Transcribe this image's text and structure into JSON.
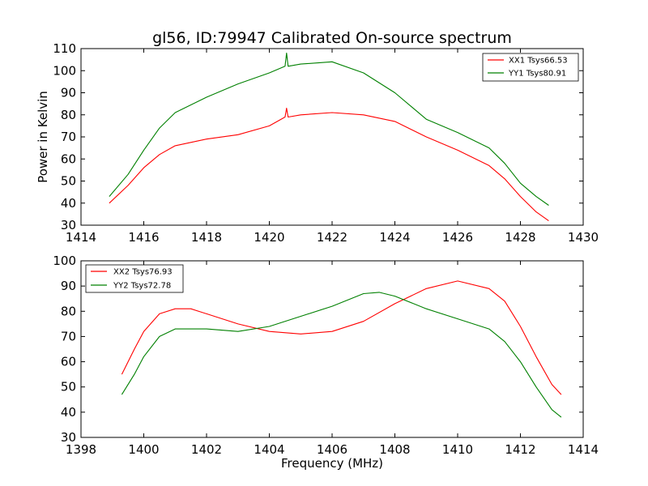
{
  "chart_data": [
    {
      "type": "line",
      "title": "gl56, ID:79947 Calibrated On-source spectrum",
      "xlabel": "",
      "ylabel": "Power in Kelvin",
      "xlim": [
        1414,
        1430
      ],
      "ylim": [
        30,
        110
      ],
      "xticks": [
        "1414",
        "1416",
        "1418",
        "1420",
        "1422",
        "1424",
        "1426",
        "1428",
        "1430"
      ],
      "yticks": [
        "30",
        "40",
        "50",
        "60",
        "70",
        "80",
        "90",
        "100",
        "110"
      ],
      "grid": false,
      "legend_position": "top-right",
      "series": [
        {
          "name": "XX1 Tsys66.53",
          "color": "#ff0000",
          "points": [
            [
              1414.9,
              40.0
            ],
            [
              1415.5,
              48.0
            ],
            [
              1416.0,
              56.0
            ],
            [
              1416.5,
              62.0
            ],
            [
              1417.0,
              66.0
            ],
            [
              1418.0,
              69.0
            ],
            [
              1419.0,
              71.0
            ],
            [
              1420.0,
              75.0
            ],
            [
              1420.5,
              79.0
            ],
            [
              1420.55,
              83.0
            ],
            [
              1420.6,
              79.0
            ],
            [
              1421.0,
              80.0
            ],
            [
              1422.0,
              81.0
            ],
            [
              1423.0,
              80.0
            ],
            [
              1424.0,
              77.0
            ],
            [
              1425.0,
              70.0
            ],
            [
              1426.0,
              64.0
            ],
            [
              1427.0,
              57.0
            ],
            [
              1427.5,
              51.0
            ],
            [
              1428.0,
              43.0
            ],
            [
              1428.5,
              36.0
            ],
            [
              1428.9,
              32.0
            ]
          ]
        },
        {
          "name": "YY1 Tsys80.91",
          "color": "#008000",
          "points": [
            [
              1414.9,
              43.0
            ],
            [
              1415.5,
              53.0
            ],
            [
              1416.0,
              64.0
            ],
            [
              1416.5,
              74.0
            ],
            [
              1417.0,
              81.0
            ],
            [
              1418.0,
              88.0
            ],
            [
              1419.0,
              94.0
            ],
            [
              1420.0,
              99.0
            ],
            [
              1420.5,
              102.0
            ],
            [
              1420.55,
              108.0
            ],
            [
              1420.6,
              102.0
            ],
            [
              1421.0,
              103.0
            ],
            [
              1422.0,
              104.0
            ],
            [
              1423.0,
              99.0
            ],
            [
              1424.0,
              90.0
            ],
            [
              1425.0,
              78.0
            ],
            [
              1426.0,
              72.0
            ],
            [
              1427.0,
              65.0
            ],
            [
              1427.5,
              58.0
            ],
            [
              1428.0,
              49.0
            ],
            [
              1428.5,
              43.0
            ],
            [
              1428.9,
              39.0
            ]
          ]
        }
      ]
    },
    {
      "type": "line",
      "title": "",
      "xlabel": "Frequency (MHz)",
      "ylabel": "",
      "xlim": [
        1398,
        1414
      ],
      "ylim": [
        30,
        100
      ],
      "xticks": [
        "1398",
        "1400",
        "1402",
        "1404",
        "1406",
        "1408",
        "1410",
        "1412",
        "1414"
      ],
      "yticks": [
        "30",
        "40",
        "50",
        "60",
        "70",
        "80",
        "90",
        "100"
      ],
      "grid": false,
      "legend_position": "top-left",
      "series": [
        {
          "name": "XX2 Tsys76.93",
          "color": "#ff0000",
          "points": [
            [
              1399.3,
              55.0
            ],
            [
              1399.7,
              65.0
            ],
            [
              1400.0,
              72.0
            ],
            [
              1400.5,
              79.0
            ],
            [
              1401.0,
              81.0
            ],
            [
              1401.5,
              81.0
            ],
            [
              1402.0,
              79.0
            ],
            [
              1403.0,
              75.0
            ],
            [
              1404.0,
              72.0
            ],
            [
              1405.0,
              71.0
            ],
            [
              1406.0,
              72.0
            ],
            [
              1407.0,
              76.0
            ],
            [
              1408.0,
              83.0
            ],
            [
              1409.0,
              89.0
            ],
            [
              1410.0,
              92.0
            ],
            [
              1411.0,
              89.0
            ],
            [
              1411.5,
              84.0
            ],
            [
              1412.0,
              74.0
            ],
            [
              1412.5,
              62.0
            ],
            [
              1413.0,
              51.0
            ],
            [
              1413.3,
              47.0
            ]
          ]
        },
        {
          "name": "YY2 Tsys72.78",
          "color": "#008000",
          "points": [
            [
              1399.3,
              47.0
            ],
            [
              1399.7,
              55.0
            ],
            [
              1400.0,
              62.0
            ],
            [
              1400.5,
              70.0
            ],
            [
              1401.0,
              73.0
            ],
            [
              1402.0,
              73.0
            ],
            [
              1403.0,
              72.0
            ],
            [
              1404.0,
              74.0
            ],
            [
              1405.0,
              78.0
            ],
            [
              1406.0,
              82.0
            ],
            [
              1407.0,
              87.0
            ],
            [
              1407.5,
              87.5
            ],
            [
              1408.0,
              86.0
            ],
            [
              1409.0,
              81.0
            ],
            [
              1410.0,
              77.0
            ],
            [
              1411.0,
              73.0
            ],
            [
              1411.5,
              68.0
            ],
            [
              1412.0,
              60.0
            ],
            [
              1412.5,
              50.0
            ],
            [
              1413.0,
              41.0
            ],
            [
              1413.3,
              38.0
            ]
          ]
        }
      ]
    }
  ]
}
